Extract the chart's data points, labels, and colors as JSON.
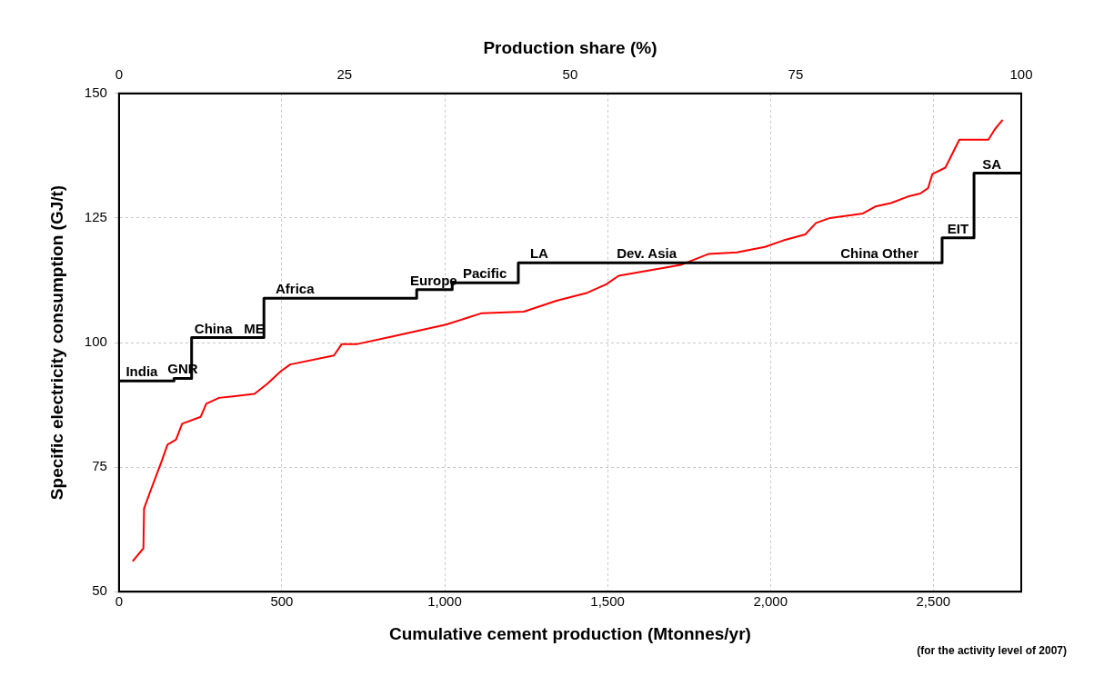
{
  "chart_data": {
    "type": "line",
    "xlabel": "Cumulative cement production (Mtonnes/yr)",
    "ylabel": "Specific electricity consumption (GJ/t)",
    "x2label": "Production share (%)",
    "xlim": [
      0,
      2770
    ],
    "xticks": [
      0,
      500,
      {
        "value": 1000,
        "label": "1,000"
      },
      {
        "value": 1500,
        "label": "1,500"
      },
      {
        "value": 2000,
        "label": "2,000"
      },
      {
        "value": 2500,
        "label": "2,500"
      }
    ],
    "x2lim": [
      0,
      100
    ],
    "x2ticks": [
      0,
      25,
      50,
      75,
      100
    ],
    "ylim": [
      50,
      150
    ],
    "yticks": [
      50,
      75,
      100,
      125,
      150
    ],
    "grid": true,
    "legend": false,
    "marker": "none",
    "series": [
      {
        "type": "step",
        "color": "#000000",
        "x": [
          0,
          169,
          223,
          445,
          914,
          1023,
          1226,
          2527,
          2625,
          2770
        ],
        "values": [
          92.3,
          92.8,
          101,
          108.9,
          110.6,
          112,
          116,
          121,
          134,
          134
        ]
      },
      {
        "color": "#ff0000",
        "x": [
          42,
          52,
          75,
          77,
          96,
          130,
          149,
          175,
          194,
          251,
          268,
          307,
          416,
          455,
          498,
          526,
          660,
          684,
          732,
          837,
          1004,
          1114,
          1243,
          1343,
          1438,
          1496,
          1534,
          1725,
          1811,
          1897,
          1983,
          2040,
          2107,
          2140,
          2183,
          2284,
          2322,
          2370,
          2422,
          2460,
          2484,
          2497,
          2537,
          2580,
          2669,
          2690,
          2713
        ],
        "values": [
          56.1,
          56.9,
          58.7,
          66.7,
          70.1,
          76,
          79.5,
          80.5,
          83.7,
          85.1,
          87.7,
          88.9,
          89.7,
          91.7,
          94.3,
          95.6,
          97.4,
          99.7,
          99.7,
          101.2,
          103.6,
          105.9,
          106.2,
          108.4,
          110,
          111.7,
          113.4,
          115.6,
          117.8,
          118.1,
          119.2,
          120.5,
          121.7,
          124,
          125,
          125.9,
          127.3,
          128,
          129.3,
          129.9,
          131,
          133.8,
          135.1,
          140.7,
          140.7,
          142.9,
          144.7
        ]
      }
    ],
    "annotations": [
      {
        "text": "India",
        "x": 70,
        "y": 92.3
      },
      {
        "text": "GNR",
        "x": 196,
        "y": 92.8
      },
      {
        "text": "China",
        "x": 290,
        "y": 101
      },
      {
        "text": "ME",
        "x": 415,
        "y": 101
      },
      {
        "text": "Africa",
        "x": 540,
        "y": 108.9
      },
      {
        "text": "Europe",
        "x": 966,
        "y": 110.6
      },
      {
        "text": "Pacific",
        "x": 1123,
        "y": 112
      },
      {
        "text": "LA",
        "x": 1290,
        "y": 116
      },
      {
        "text": "Dev. Asia",
        "x": 1620,
        "y": 116
      },
      {
        "text": "China Other",
        "x": 2335,
        "y": 116
      },
      {
        "text": "EIT",
        "x": 2576,
        "y": 121
      },
      {
        "text": "SA",
        "x": 2680,
        "y": 134
      },
      "(for the activity level of 2007)"
    ]
  }
}
